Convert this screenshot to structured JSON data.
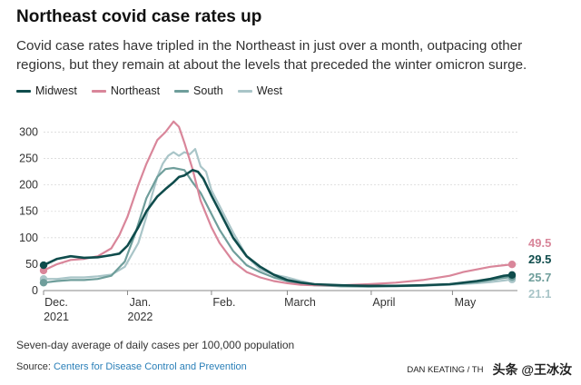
{
  "title": "Northeast covid case rates up",
  "subtitle": "Covid case rates have tripled in the Northeast in just over a month, outpacing other regions, but they remain at about the levels that preceded the winter omicron surge.",
  "note": "Seven-day average of daily cases per 100,000 population",
  "source_prefix": "Source: ",
  "source_link": "Centers for Disease Control and Prevention",
  "credit": "DAN KEATING / TH",
  "watermark": "头条 @王冰汝",
  "colors": {
    "Midwest": "#0f4c4c",
    "Northeast": "#d9869a",
    "South": "#6f9e9b",
    "West": "#a9c5c8"
  },
  "chart_data": {
    "type": "line",
    "ylim": [
      0,
      330
    ],
    "yticks": [
      0,
      50,
      100,
      150,
      200,
      250,
      300
    ],
    "xlim": [
      0,
      175
    ],
    "xticks": [
      {
        "x": 0,
        "label": "Dec.",
        "label2": "2021"
      },
      {
        "x": 31,
        "label": "Jan.",
        "label2": "2022"
      },
      {
        "x": 62,
        "label": "Feb.",
        "label2": ""
      },
      {
        "x": 90,
        "label": "March",
        "label2": ""
      },
      {
        "x": 121,
        "label": "April",
        "label2": ""
      },
      {
        "x": 151,
        "label": "May",
        "label2": ""
      }
    ],
    "series": [
      {
        "name": "Midwest",
        "end_label": "29.5",
        "x": [
          0,
          5,
          10,
          15,
          20,
          25,
          28,
          31,
          35,
          38,
          42,
          45,
          48,
          50,
          52,
          55,
          57,
          59,
          62,
          65,
          70,
          75,
          80,
          85,
          90,
          95,
          100,
          110,
          120,
          130,
          140,
          150,
          160,
          165,
          170,
          173
        ],
        "y": [
          48,
          60,
          65,
          62,
          63,
          67,
          70,
          85,
          120,
          150,
          178,
          192,
          205,
          215,
          218,
          228,
          225,
          212,
          180,
          150,
          100,
          65,
          45,
          30,
          20,
          15,
          12,
          10,
          9,
          9,
          10,
          12,
          18,
          22,
          28,
          29.5
        ]
      },
      {
        "name": "Northeast",
        "end_label": "49.5",
        "x": [
          0,
          5,
          10,
          15,
          20,
          25,
          28,
          31,
          35,
          38,
          42,
          45,
          48,
          50,
          52,
          55,
          58,
          62,
          65,
          70,
          75,
          80,
          85,
          90,
          95,
          100,
          110,
          120,
          130,
          140,
          150,
          155,
          160,
          165,
          170,
          173
        ],
        "y": [
          38,
          50,
          58,
          60,
          65,
          80,
          105,
          140,
          200,
          240,
          285,
          300,
          320,
          310,
          280,
          230,
          170,
          120,
          90,
          55,
          35,
          25,
          18,
          14,
          11,
          10,
          10,
          12,
          15,
          20,
          28,
          35,
          40,
          45,
          48,
          49.5
        ]
      },
      {
        "name": "South",
        "end_label": "25.7",
        "x": [
          0,
          5,
          10,
          15,
          20,
          25,
          30,
          34,
          38,
          42,
          45,
          48,
          52,
          55,
          58,
          60,
          62,
          65,
          70,
          75,
          80,
          85,
          90,
          95,
          100,
          110,
          120,
          130,
          140,
          150,
          160,
          165,
          170,
          173
        ],
        "y": [
          15,
          18,
          20,
          20,
          22,
          28,
          55,
          110,
          175,
          215,
          230,
          232,
          228,
          205,
          185,
          165,
          145,
          115,
          75,
          48,
          35,
          25,
          18,
          13,
          10,
          8,
          8,
          9,
          10,
          12,
          16,
          20,
          24,
          25.7
        ]
      },
      {
        "name": "West",
        "end_label": "21.1",
        "x": [
          0,
          5,
          10,
          15,
          20,
          25,
          30,
          35,
          38,
          40,
          42,
          44,
          46,
          48,
          50,
          52,
          54,
          56,
          58,
          60,
          62,
          65,
          70,
          75,
          80,
          85,
          90,
          95,
          100,
          110,
          120,
          130,
          140,
          150,
          160,
          165,
          170,
          173
        ],
        "y": [
          22,
          22,
          25,
          25,
          27,
          30,
          45,
          90,
          140,
          180,
          215,
          240,
          255,
          262,
          255,
          262,
          258,
          268,
          235,
          225,
          190,
          160,
          110,
          65,
          40,
          30,
          25,
          18,
          12,
          8,
          7,
          8,
          9,
          11,
          14,
          16,
          19,
          21.1
        ]
      }
    ]
  }
}
